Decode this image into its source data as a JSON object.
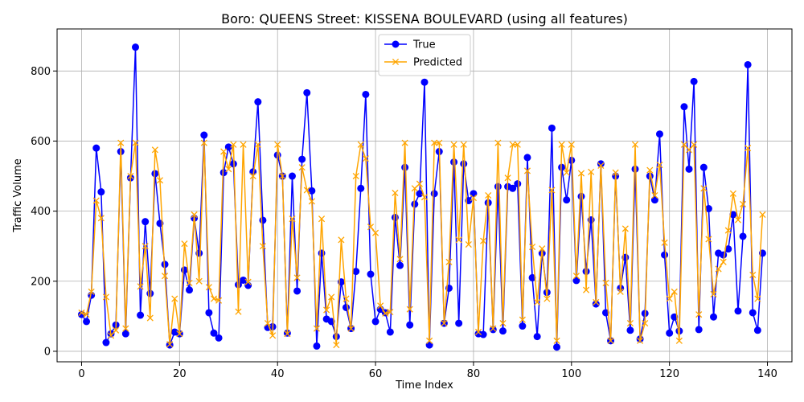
{
  "chart_data": {
    "type": "line",
    "title": "Boro: QUEENS Street: KISSENA BOULEVARD (using all features)",
    "xlabel": "Time Index",
    "ylabel": "Traffic Volume",
    "xlim": [
      -5,
      145
    ],
    "ylim": [
      -30,
      920
    ],
    "x_ticks": [
      0,
      20,
      40,
      60,
      80,
      100,
      120,
      140
    ],
    "y_ticks": [
      0,
      200,
      400,
      600,
      800
    ],
    "grid": true,
    "legend_position": "top-center",
    "series": [
      {
        "name": "True",
        "color": "#0000ff",
        "marker": "o",
        "values": [
          105,
          85,
          160,
          580,
          455,
          25,
          50,
          75,
          570,
          50,
          495,
          868,
          103,
          370,
          165,
          507,
          365,
          248,
          18,
          55,
          50,
          232,
          175,
          380,
          280,
          617,
          110,
          52,
          38,
          510,
          583,
          535,
          190,
          203,
          188,
          512,
          712,
          374,
          68,
          70,
          560,
          500,
          52,
          500,
          172,
          548,
          738,
          458,
          15,
          280,
          92,
          85,
          42,
          198,
          125,
          65,
          228,
          465,
          733,
          220,
          85,
          120,
          110,
          55,
          382,
          245,
          525,
          75,
          420,
          450,
          768,
          18,
          450,
          570,
          80,
          180,
          540,
          80,
          535,
          430,
          450,
          50,
          48,
          424,
          62,
          470,
          58,
          470,
          465,
          478,
          72,
          553,
          210,
          42,
          280,
          168,
          637,
          12,
          525,
          432,
          545,
          202,
          442,
          228,
          375,
          135,
          535,
          110,
          30,
          500,
          180,
          268,
          60,
          520,
          35,
          108,
          500,
          432,
          620,
          275,
          52,
          98,
          58,
          698,
          520,
          770,
          62,
          525,
          407,
          98,
          280,
          275,
          292,
          390,
          115,
          328,
          818,
          110,
          60,
          280
        ]
      },
      {
        "name": "Predicted",
        "color": "#ffa500",
        "marker": "x",
        "values": [
          110,
          105,
          170,
          430,
          380,
          155,
          45,
          60,
          595,
          65,
          500,
          595,
          185,
          300,
          95,
          575,
          488,
          215,
          20,
          150,
          50,
          307,
          195,
          390,
          200,
          595,
          183,
          150,
          145,
          570,
          520,
          590,
          113,
          590,
          198,
          500,
          590,
          300,
          80,
          45,
          590,
          500,
          50,
          378,
          210,
          525,
          460,
          428,
          65,
          378,
          118,
          155,
          18,
          318,
          150,
          65,
          500,
          590,
          550,
          355,
          338,
          130,
          108,
          112,
          452,
          263,
          595,
          120,
          465,
          478,
          440,
          30,
          595,
          595,
          80,
          255,
          590,
          318,
          590,
          305,
          438,
          55,
          315,
          445,
          65,
          595,
          80,
          495,
          590,
          590,
          90,
          515,
          298,
          140,
          293,
          150,
          460,
          30,
          590,
          510,
          590,
          215,
          508,
          175,
          512,
          140,
          530,
          195,
          30,
          510,
          170,
          350,
          80,
          590,
          30,
          80,
          517,
          445,
          532,
          310,
          150,
          170,
          30,
          590,
          575,
          590,
          105,
          465,
          320,
          163,
          235,
          255,
          345,
          450,
          375,
          420,
          580,
          218,
          150,
          390
        ]
      }
    ]
  }
}
